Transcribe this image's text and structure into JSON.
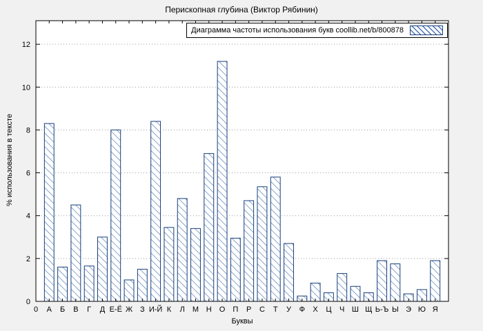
{
  "chart_data": {
    "type": "bar",
    "title": "Перископная глубина (Виктор Рябинин)",
    "legend": "Диаграмма частоты использования букв coollib.net/b/800878",
    "xlabel": "Буквы",
    "ylabel": "% использования в тексте",
    "categories": [
      "А",
      "Б",
      "В",
      "Г",
      "Д",
      "Е-Ё",
      "Ж",
      "З",
      "И-Й",
      "К",
      "Л",
      "М",
      "Н",
      "О",
      "П",
      "Р",
      "С",
      "Т",
      "У",
      "Ф",
      "Х",
      "Ц",
      "Ч",
      "Ш",
      "Щ",
      "Ь-Ъ",
      "Ы",
      "Э",
      "Ю",
      "Я"
    ],
    "values": [
      8.3,
      1.6,
      4.5,
      1.65,
      3.0,
      8.0,
      1.0,
      1.5,
      8.4,
      3.45,
      4.8,
      3.4,
      6.9,
      11.2,
      2.95,
      4.7,
      5.35,
      5.8,
      2.7,
      0.25,
      0.85,
      0.4,
      1.3,
      0.7,
      0.4,
      1.9,
      1.75,
      0.35,
      0.55,
      1.9
    ],
    "ylim": [
      0,
      13.1
    ],
    "yticks": [
      0,
      2,
      4,
      6,
      8,
      10,
      12
    ],
    "x_origin_label": "0",
    "grid": "horizontal-dotted",
    "legend_position": "top-right-inside",
    "colors": {
      "bar_border": "#163d7a",
      "bar_hatch": "#4a74b4",
      "figure_background": "#f1f1f1",
      "plot_background": "#ffffff",
      "grid_line": "#9a9a9a"
    }
  }
}
